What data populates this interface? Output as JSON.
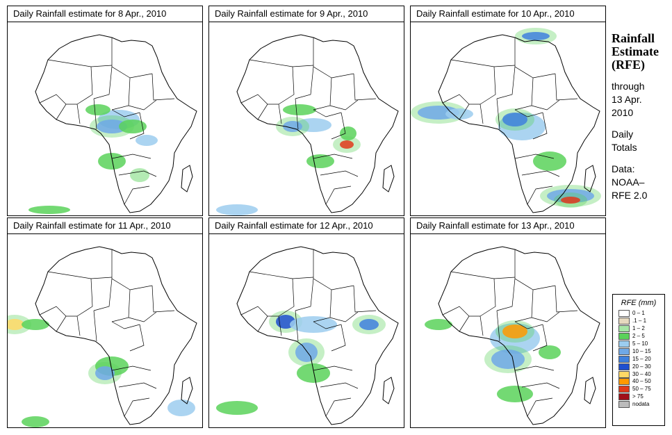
{
  "panels": [
    {
      "title": "Daily Rainfall estimate for  8 Apr., 2010"
    },
    {
      "title": "Daily Rainfall estimate for  9 Apr., 2010"
    },
    {
      "title": "Daily Rainfall estimate for  10 Apr., 2010"
    },
    {
      "title": "Daily Rainfall estimate for  11 Apr., 2010"
    },
    {
      "title": "Daily Rainfall estimate for  12 Apr., 2010"
    },
    {
      "title": "Daily Rainfall estimate for  13 Apr., 2010"
    }
  ],
  "side": {
    "line1": "Rainfall",
    "line2": "Estimate",
    "line3": "(RFE)",
    "through": "through",
    "date1": "13 Apr.",
    "date2": "2010",
    "daily1": "Daily",
    "daily2": "Totals",
    "data1": "Data:",
    "data2": "NOAA–",
    "data3": "RFE 2.0"
  },
  "legend": {
    "title": "RFE (mm)",
    "items": [
      {
        "label": "0 – 1",
        "color": "#ffffff"
      },
      {
        "label": ".1 – 1",
        "color": "#e6d9bf"
      },
      {
        "label": "1 – 2",
        "color": "#a6e6a6"
      },
      {
        "label": "2 – 5",
        "color": "#5ad25a"
      },
      {
        "label": "5 – 10",
        "color": "#9ccdef"
      },
      {
        "label": "10 – 15",
        "color": "#6fa8e6"
      },
      {
        "label": "15 – 20",
        "color": "#3f80dd"
      },
      {
        "label": "20 – 30",
        "color": "#1f4fcf"
      },
      {
        "label": "30 – 40",
        "color": "#ffd966"
      },
      {
        "label": "40 – 50",
        "color": "#ff9900"
      },
      {
        "label": "50 – 75",
        "color": "#e03a1a"
      },
      {
        "label": "> 75",
        "color": "#a0101a"
      },
      {
        "label": "nodata",
        "color": "#bbbbbb"
      }
    ]
  }
}
